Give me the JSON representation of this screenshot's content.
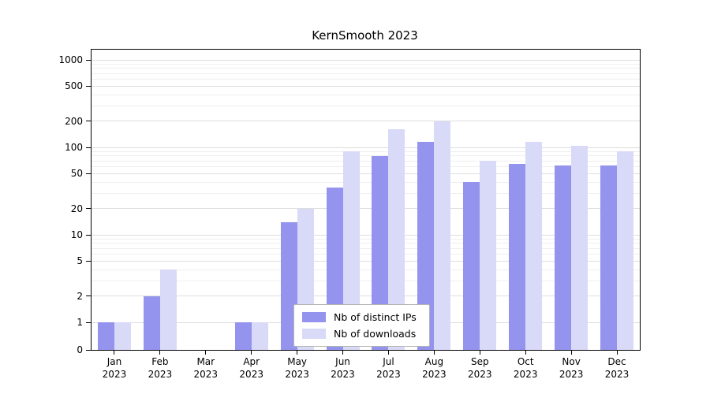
{
  "chart_data": {
    "type": "bar",
    "title": "KernSmooth 2023",
    "categories": [
      {
        "label": "Jan",
        "year": "2023"
      },
      {
        "label": "Feb",
        "year": "2023"
      },
      {
        "label": "Mar",
        "year": "2023"
      },
      {
        "label": "Apr",
        "year": "2023"
      },
      {
        "label": "May",
        "year": "2023"
      },
      {
        "label": "Jun",
        "year": "2023"
      },
      {
        "label": "Jul",
        "year": "2023"
      },
      {
        "label": "Aug",
        "year": "2023"
      },
      {
        "label": "Sep",
        "year": "2023"
      },
      {
        "label": "Oct",
        "year": "2023"
      },
      {
        "label": "Nov",
        "year": "2023"
      },
      {
        "label": "Dec",
        "year": "2023"
      }
    ],
    "series": [
      {
        "name": "Nb of distinct IPs",
        "color": "#9494ee",
        "values": [
          1,
          2,
          0,
          1,
          14,
          35,
          80,
          115,
          40,
          65,
          62,
          62
        ]
      },
      {
        "name": "Nb of downloads",
        "color": "#d9d9f8",
        "values": [
          1,
          4,
          0,
          1,
          20,
          90,
          160,
          200,
          70,
          115,
          105,
          90
        ]
      }
    ],
    "yscale": "log (0 drawn at baseline)",
    "ylim": [
      0,
      1000
    ],
    "y_ticks": [
      0,
      1,
      2,
      5,
      10,
      20,
      50,
      100,
      200,
      500,
      1000
    ],
    "y_minor_gridlines": [
      3,
      4,
      6,
      7,
      8,
      9,
      30,
      40,
      60,
      70,
      80,
      90,
      300,
      400,
      600,
      700,
      800,
      900
    ],
    "grid": true,
    "legend": {
      "position": "inside lower center",
      "items": [
        "Nb of distinct IPs",
        "Nb of downloads"
      ]
    }
  }
}
